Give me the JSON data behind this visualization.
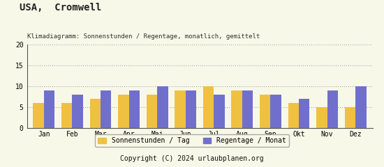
{
  "title": "USA,  Cromwell",
  "subtitle": "Klimadiagramm: Sonnenstunden / Regentage, monatlich, gemittelt",
  "months": [
    "Jan",
    "Feb",
    "Mar",
    "Apr",
    "Mai",
    "Jun",
    "Jul",
    "Aug",
    "Sep",
    "Okt",
    "Nov",
    "Dez"
  ],
  "sonnenstunden": [
    6,
    6,
    7,
    8,
    8,
    9,
    10,
    9,
    8,
    6,
    5,
    5
  ],
  "regentage": [
    9,
    8,
    9,
    9,
    10,
    9,
    8,
    9,
    8,
    7,
    9,
    10
  ],
  "color_sonnen": "#f0c040",
  "color_regen": "#7070cc",
  "background_color": "#f8f8e8",
  "footer_bg": "#d4a000",
  "footer_text": "Copyright (C) 2024 urlaubplanen.org",
  "ylim": [
    0,
    20
  ],
  "yticks": [
    0,
    5,
    10,
    15,
    20
  ],
  "legend_sonnen": "Sonnenstunden / Tag",
  "legend_regen": "Regentage / Monat",
  "title_fontsize": 10,
  "subtitle_fontsize": 6.5,
  "axis_fontsize": 7,
  "legend_fontsize": 7,
  "footer_fontsize": 7
}
